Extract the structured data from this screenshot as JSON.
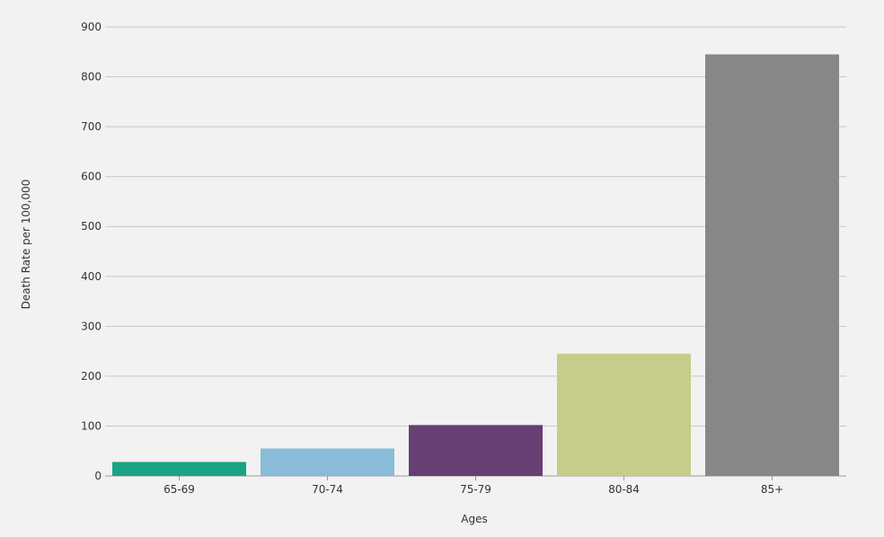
{
  "chart_data": {
    "type": "bar",
    "categories": [
      "65-69",
      "70-74",
      "75-79",
      "80-84",
      "85+"
    ],
    "values": [
      28,
      55,
      102,
      245,
      845
    ],
    "colors": [
      "#1aa386",
      "#8abbd9",
      "#683f72",
      "#c6cd8a",
      "#878787"
    ],
    "xlabel": "Ages",
    "ylabel": "Death Rate per 100,000",
    "ylim": [
      0,
      900
    ],
    "yticks": [
      0,
      100,
      200,
      300,
      400,
      500,
      600,
      700,
      800,
      900
    ],
    "grid": true,
    "background": "#f2f2f2"
  }
}
